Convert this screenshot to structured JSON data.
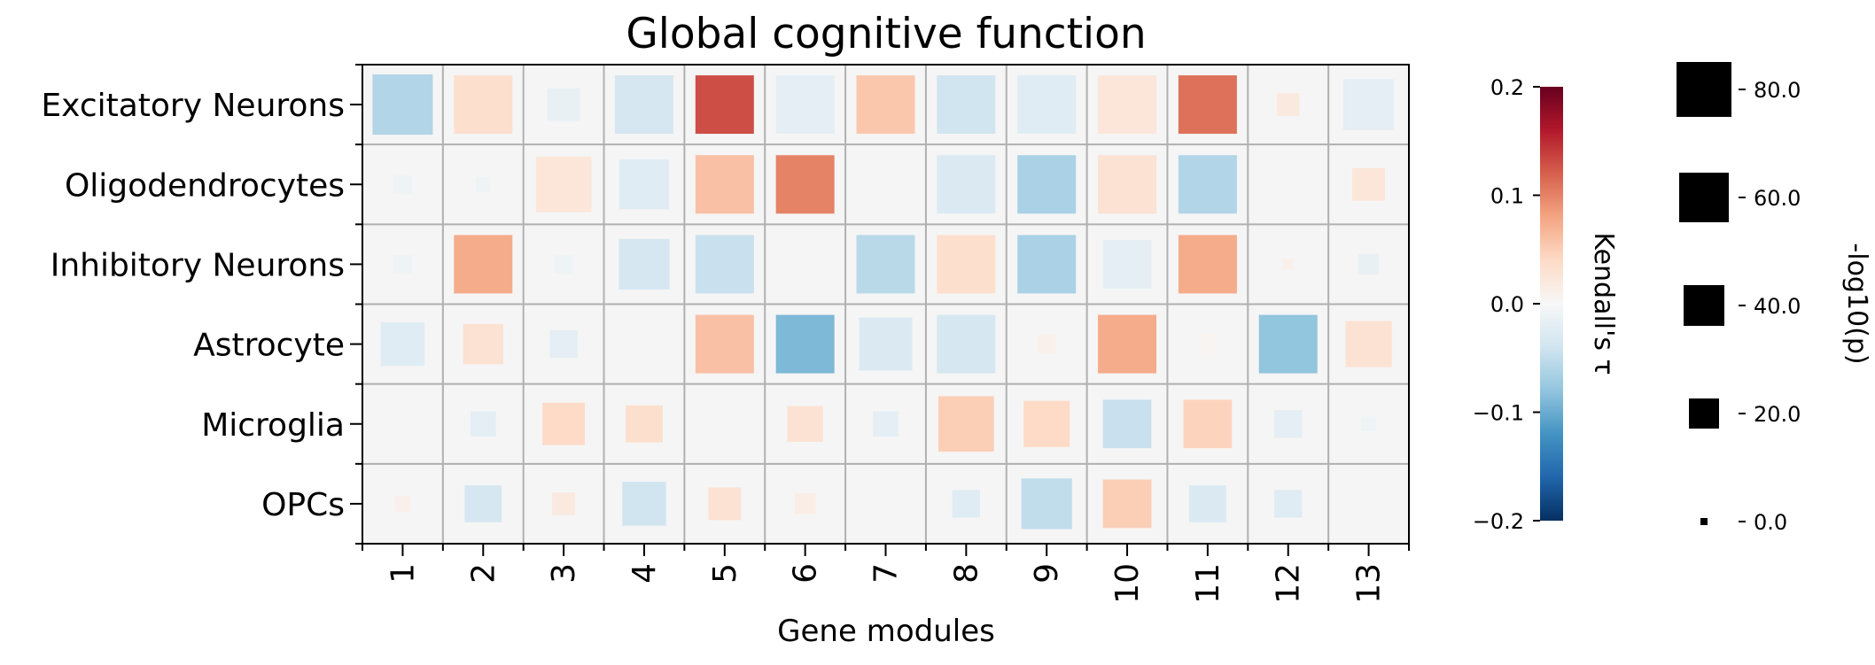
{
  "chart_data": {
    "type": "heatmap",
    "title": "Global cognitive function",
    "xlabel": "Gene modules",
    "ylabel": "",
    "categories": [
      "1",
      "2",
      "3",
      "4",
      "5",
      "6",
      "7",
      "8",
      "9",
      "10",
      "11",
      "12",
      "13"
    ],
    "rows": [
      "Excitatory Neurons",
      "Oligodendrocytes",
      "Inhibitory Neurons",
      "Astrocyte",
      "Microglia",
      "OPCs"
    ],
    "tau": [
      [
        -0.06,
        0.035,
        -0.015,
        -0.035,
        0.13,
        -0.02,
        0.055,
        -0.04,
        -0.025,
        0.025,
        0.11,
        0.02,
        -0.02
      ],
      [
        -0.01,
        -0.01,
        0.025,
        -0.025,
        0.06,
        0.1,
        0.0,
        -0.03,
        -0.065,
        0.03,
        -0.06,
        0.0,
        0.025
      ],
      [
        -0.01,
        0.075,
        -0.01,
        -0.035,
        -0.045,
        0.0,
        -0.055,
        0.035,
        -0.065,
        -0.02,
        0.075,
        0.01,
        -0.015
      ],
      [
        -0.025,
        0.03,
        -0.02,
        0.0,
        0.06,
        -0.09,
        -0.03,
        -0.035,
        0.01,
        0.075,
        0.005,
        -0.08,
        0.03
      ],
      [
        0.0,
        -0.02,
        0.04,
        0.035,
        0.0,
        0.03,
        -0.02,
        0.05,
        0.04,
        -0.045,
        0.045,
        -0.02,
        -0.01
      ],
      [
        0.01,
        -0.035,
        0.02,
        -0.04,
        0.03,
        0.015,
        0.0,
        -0.025,
        -0.05,
        0.05,
        -0.03,
        -0.025,
        0.0
      ]
    ],
    "neglog10p": [
      [
        85,
        80,
        25,
        80,
        80,
        80,
        80,
        80,
        80,
        80,
        80,
        12,
        60
      ],
      [
        8,
        5,
        72,
        58,
        80,
        80,
        0,
        80,
        80,
        80,
        80,
        0,
        25
      ],
      [
        8,
        80,
        8,
        60,
        80,
        0,
        80,
        80,
        80,
        55,
        80,
        3,
        10
      ],
      [
        45,
        38,
        18,
        0,
        80,
        80,
        66,
        80,
        8,
        80,
        10,
        80,
        50
      ],
      [
        0,
        15,
        42,
        32,
        0,
        30,
        15,
        72,
        50,
        55,
        55,
        18,
        5
      ],
      [
        6,
        32,
        12,
        45,
        25,
        10,
        0,
        18,
        60,
        55,
        32,
        18,
        0
      ]
    ],
    "color_scale": {
      "label": "Kendall's τ",
      "range": [
        -0.2,
        0.2
      ],
      "ticks": [
        "0.2",
        "0.1",
        "0.0",
        "−0.1",
        "−0.2"
      ],
      "colormap": "RdBu_r"
    },
    "size_scale": {
      "label": "-log10(p)",
      "range": [
        0,
        80
      ],
      "ticks": [
        "80.0",
        "60.0",
        "40.0",
        "20.0",
        "0.0"
      ]
    },
    "grid": true,
    "background": "#f5f5f5"
  }
}
